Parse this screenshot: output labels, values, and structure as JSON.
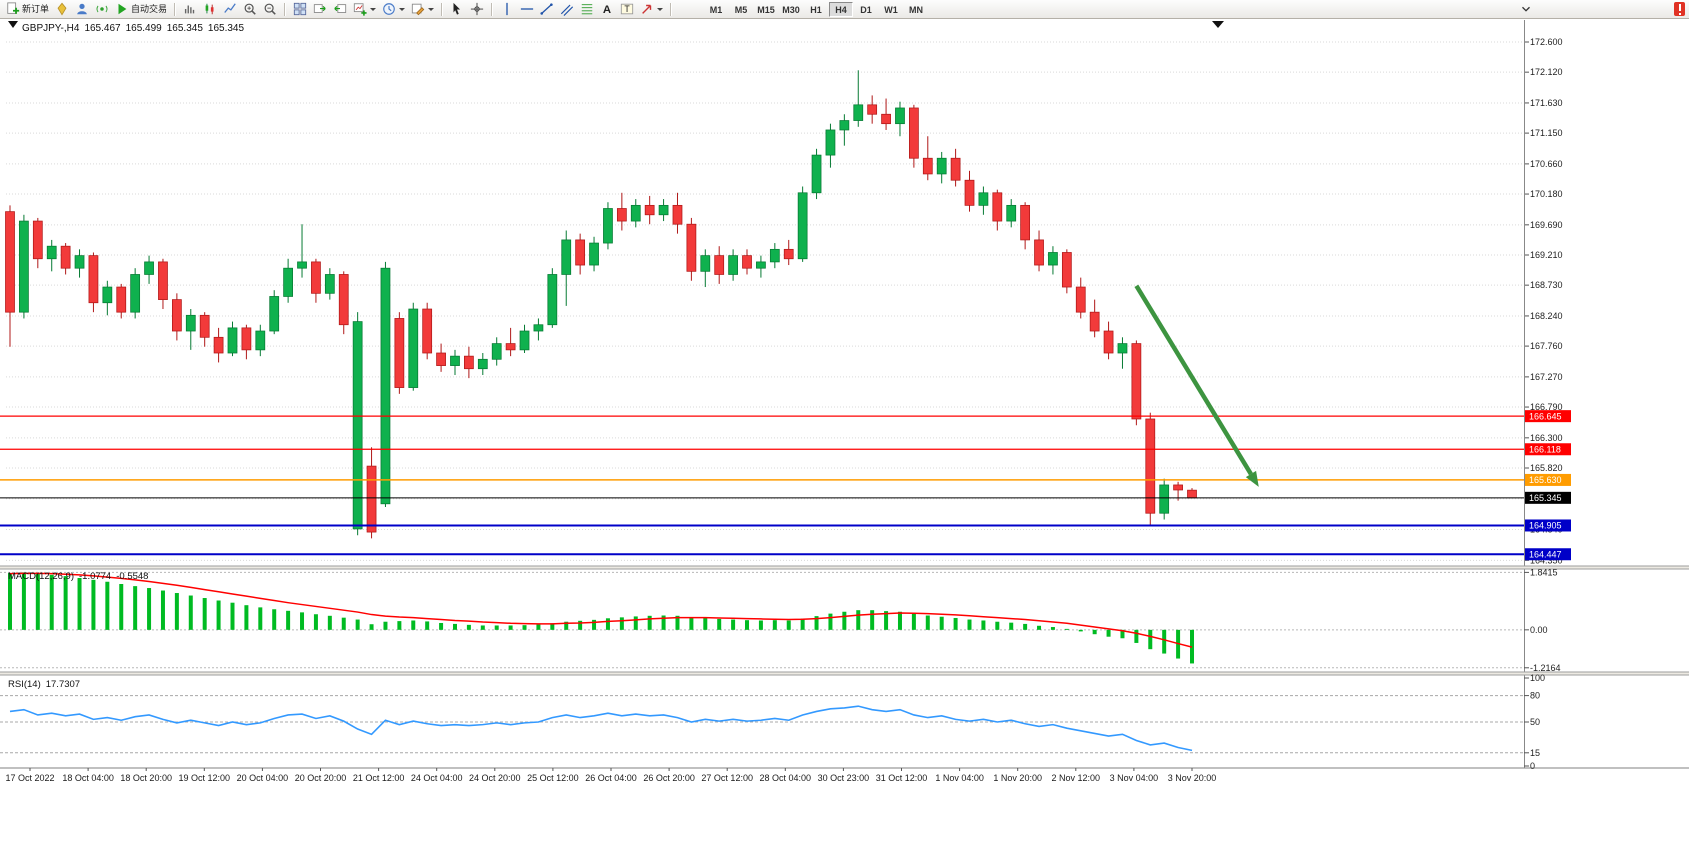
{
  "toolbar": {
    "items": [
      {
        "name": "new-order-button",
        "icon": "doc-plus",
        "label": "新订单"
      },
      {
        "name": "metaeditor-button",
        "icon": "bulb"
      },
      {
        "name": "profile-button",
        "icon": "person"
      },
      {
        "name": "signals-button",
        "icon": "broadcast"
      },
      {
        "name": "auto-trading-button",
        "icon": "play",
        "label": "自动交易"
      },
      {
        "sep": true
      },
      {
        "name": "bar-chart-button",
        "icon": "chart-bars"
      },
      {
        "name": "candlestick-chart-button",
        "icon": "chart-candles"
      },
      {
        "name": "line-chart-button",
        "icon": "chart-line"
      },
      {
        "name": "zoom-in-button",
        "icon": "zoom-in"
      },
      {
        "name": "zoom-out-button",
        "icon": "zoom-out"
      },
      {
        "sep": true
      },
      {
        "name": "tile-windows-button",
        "icon": "tile"
      },
      {
        "name": "auto-scroll-button",
        "icon": "scroll"
      },
      {
        "name": "chart-shift-button",
        "icon": "shift"
      },
      {
        "name": "new-chart-button",
        "icon": "new-chart",
        "caret": true
      },
      {
        "name": "periods-button",
        "icon": "clock",
        "caret": true
      },
      {
        "name": "templates-button",
        "icon": "pencil-chart",
        "caret": true
      },
      {
        "sep": true
      },
      {
        "name": "cursor-button",
        "icon": "cursor"
      },
      {
        "name": "crosshair-button",
        "icon": "crosshair"
      },
      {
        "sep": true
      },
      {
        "name": "vertical-line-button",
        "icon": "vline"
      },
      {
        "name": "horizontal-line-button",
        "icon": "hline"
      },
      {
        "name": "trendline-button",
        "icon": "trendline"
      },
      {
        "name": "channel-button",
        "icon": "channel"
      },
      {
        "name": "fibonacci-button",
        "icon": "fibo"
      },
      {
        "name": "text-button",
        "icon": "text-a"
      },
      {
        "name": "text-label-button",
        "icon": "text-t"
      },
      {
        "name": "arrows-button",
        "icon": "arrow-tool",
        "caret": true
      },
      {
        "sep": true
      }
    ],
    "timeframes": [
      "M1",
      "M5",
      "M15",
      "M30",
      "H1",
      "H4",
      "D1",
      "W1",
      "MN"
    ],
    "active_timeframe": "H4",
    "right_items": [
      {
        "name": "toolbar-overflow-button",
        "icon": "chevron"
      },
      {
        "name": "notification-badge",
        "icon": "badge"
      }
    ]
  },
  "chart_data": {
    "type": "candlestick",
    "symbol_title": "GBPJPY-,H4",
    "ohlc": {
      "open": "165.467",
      "high": "165.499",
      "low": "165.345",
      "close": "165.345"
    },
    "price_axis_ticks": [
      "172.600",
      "172.120",
      "171.630",
      "171.150",
      "170.660",
      "170.180",
      "169.690",
      "169.210",
      "168.730",
      "168.240",
      "167.760",
      "167.270",
      "166.790",
      "166.300",
      "165.820",
      "165.330",
      "164.840",
      "164.350"
    ],
    "time_labels": [
      "17 Oct 2022",
      "18 Oct 04:00",
      "18 Oct 20:00",
      "19 Oct 12:00",
      "20 Oct 04:00",
      "20 Oct 20:00",
      "21 Oct 12:00",
      "24 Oct 04:00",
      "24 Oct 20:00",
      "25 Oct 12:00",
      "26 Oct 04:00",
      "26 Oct 20:00",
      "27 Oct 12:00",
      "28 Oct 04:00",
      "30 Oct 23:00",
      "31 Oct 12:00",
      "1 Nov 04:00",
      "1 Nov 20:00",
      "2 Nov 12:00",
      "3 Nov 04:00",
      "3 Nov 20:00"
    ],
    "candles": [
      [
        169.9,
        170.0,
        167.75,
        168.3
      ],
      [
        168.3,
        169.85,
        168.2,
        169.75
      ],
      [
        169.75,
        169.8,
        169.0,
        169.15
      ],
      [
        169.15,
        169.45,
        168.95,
        169.35
      ],
      [
        169.35,
        169.4,
        168.9,
        169.0
      ],
      [
        169.0,
        169.3,
        168.85,
        169.2
      ],
      [
        169.2,
        169.25,
        168.3,
        168.45
      ],
      [
        168.45,
        168.8,
        168.25,
        168.7
      ],
      [
        168.7,
        168.75,
        168.2,
        168.3
      ],
      [
        168.3,
        169.0,
        168.2,
        168.9
      ],
      [
        168.9,
        169.2,
        168.75,
        169.1
      ],
      [
        169.1,
        169.15,
        168.35,
        168.5
      ],
      [
        168.5,
        168.6,
        167.85,
        168.0
      ],
      [
        168.0,
        168.35,
        167.7,
        168.25
      ],
      [
        168.25,
        168.3,
        167.75,
        167.9
      ],
      [
        167.9,
        168.05,
        167.5,
        167.65
      ],
      [
        167.65,
        168.15,
        167.6,
        168.05
      ],
      [
        168.05,
        168.1,
        167.55,
        167.7
      ],
      [
        167.7,
        168.1,
        167.6,
        168.0
      ],
      [
        168.0,
        168.65,
        167.95,
        168.55
      ],
      [
        168.55,
        169.15,
        168.45,
        169.0
      ],
      [
        169.0,
        169.7,
        168.85,
        169.1
      ],
      [
        169.1,
        169.15,
        168.45,
        168.6
      ],
      [
        168.6,
        169.0,
        168.5,
        168.9
      ],
      [
        168.9,
        168.95,
        167.95,
        168.1
      ],
      [
        164.85,
        168.3,
        164.75,
        168.15
      ],
      [
        165.85,
        166.15,
        164.7,
        164.8
      ],
      [
        165.25,
        169.1,
        165.2,
        169.0
      ],
      [
        168.2,
        168.3,
        167.0,
        167.1
      ],
      [
        167.1,
        168.45,
        167.05,
        168.35
      ],
      [
        168.35,
        168.45,
        167.55,
        167.65
      ],
      [
        167.65,
        167.8,
        167.35,
        167.45
      ],
      [
        167.45,
        167.7,
        167.3,
        167.6
      ],
      [
        167.6,
        167.75,
        167.25,
        167.4
      ],
      [
        167.4,
        167.65,
        167.3,
        167.55
      ],
      [
        167.55,
        167.9,
        167.45,
        167.8
      ],
      [
        167.8,
        168.05,
        167.6,
        167.7
      ],
      [
        167.7,
        168.1,
        167.65,
        168.0
      ],
      [
        168.0,
        168.2,
        167.85,
        168.1
      ],
      [
        168.1,
        169.0,
        168.05,
        168.9
      ],
      [
        168.9,
        169.6,
        168.4,
        169.45
      ],
      [
        169.45,
        169.55,
        168.9,
        169.05
      ],
      [
        169.05,
        169.5,
        168.95,
        169.4
      ],
      [
        169.4,
        170.05,
        169.3,
        169.95
      ],
      [
        169.95,
        170.2,
        169.6,
        169.75
      ],
      [
        169.75,
        170.1,
        169.65,
        170.0
      ],
      [
        170.0,
        170.15,
        169.7,
        169.85
      ],
      [
        169.85,
        170.1,
        169.75,
        170.0
      ],
      [
        170.0,
        170.2,
        169.55,
        169.7
      ],
      [
        169.7,
        169.8,
        168.8,
        168.95
      ],
      [
        168.95,
        169.3,
        168.7,
        169.2
      ],
      [
        169.2,
        169.35,
        168.75,
        168.9
      ],
      [
        168.9,
        169.3,
        168.8,
        169.2
      ],
      [
        169.2,
        169.3,
        168.9,
        169.0
      ],
      [
        169.0,
        169.2,
        168.85,
        169.1
      ],
      [
        169.1,
        169.4,
        169.0,
        169.3
      ],
      [
        169.3,
        169.45,
        169.05,
        169.15
      ],
      [
        169.15,
        170.3,
        169.1,
        170.2
      ],
      [
        170.2,
        170.9,
        170.1,
        170.8
      ],
      [
        170.8,
        171.3,
        170.6,
        171.2
      ],
      [
        171.2,
        171.45,
        170.95,
        171.35
      ],
      [
        171.35,
        172.15,
        171.25,
        171.6
      ],
      [
        171.6,
        171.75,
        171.3,
        171.45
      ],
      [
        171.45,
        171.7,
        171.2,
        171.3
      ],
      [
        171.3,
        171.65,
        171.1,
        171.55
      ],
      [
        171.55,
        171.6,
        170.6,
        170.75
      ],
      [
        170.75,
        171.1,
        170.4,
        170.5
      ],
      [
        170.5,
        170.85,
        170.35,
        170.75
      ],
      [
        170.75,
        170.9,
        170.3,
        170.4
      ],
      [
        170.4,
        170.55,
        169.9,
        170.0
      ],
      [
        170.0,
        170.3,
        169.85,
        170.2
      ],
      [
        170.2,
        170.25,
        169.6,
        169.75
      ],
      [
        169.75,
        170.1,
        169.65,
        170.0
      ],
      [
        170.0,
        170.05,
        169.3,
        169.45
      ],
      [
        169.45,
        169.6,
        168.95,
        169.05
      ],
      [
        169.05,
        169.35,
        168.9,
        169.25
      ],
      [
        169.25,
        169.3,
        168.6,
        168.7
      ],
      [
        168.7,
        168.85,
        168.2,
        168.3
      ],
      [
        168.3,
        168.5,
        167.9,
        168.0
      ],
      [
        168.0,
        168.15,
        167.55,
        167.65
      ],
      [
        167.65,
        167.9,
        167.4,
        167.8
      ],
      [
        167.8,
        167.85,
        166.5,
        166.6
      ],
      [
        166.6,
        166.7,
        164.9,
        165.1
      ],
      [
        165.1,
        165.65,
        165.0,
        165.55
      ],
      [
        165.55,
        165.6,
        165.3,
        165.47
      ],
      [
        165.467,
        165.499,
        165.345,
        165.345
      ]
    ],
    "levels": [
      {
        "label": "166.645",
        "price": 166.645,
        "color": "#ff0000",
        "width": 1.2
      },
      {
        "label": "166.118",
        "price": 166.118,
        "color": "#ff0000",
        "width": 1.2
      },
      {
        "label": "165.630",
        "price": 165.63,
        "color": "#ff9c00",
        "width": 1.5
      },
      {
        "label": "165.345",
        "price": 165.345,
        "color": "#000000",
        "width": 1
      },
      {
        "label": "164.905",
        "price": 164.905,
        "color": "#0000c8",
        "width": 2
      },
      {
        "label": "164.447",
        "price": 164.447,
        "color": "#0000c8",
        "width": 2
      }
    ],
    "arrow": {
      "from_index": 81,
      "from_price": 168.72,
      "to_index": 89.8,
      "to_price": 165.52,
      "color": "#3d9440"
    },
    "colors": {
      "up": "#0fb14e",
      "up_border": "#067a33",
      "down": "#f23a3a",
      "down_border": "#b01818",
      "grid": "#d9d9d9",
      "axis_text": "#222222"
    },
    "macd": {
      "name": "MACD(12,26,9)",
      "main_value": "-1.0774",
      "signal_value": "-0.5548",
      "axis_labels": [
        "1.8415",
        "0.00",
        "-1.2164"
      ],
      "range_max": 1.95,
      "range_min": -1.35,
      "hist_color": "#00bb22",
      "signal_color": "#ff0000",
      "histogram": [
        1.82,
        1.84,
        1.8,
        1.76,
        1.72,
        1.66,
        1.6,
        1.54,
        1.47,
        1.4,
        1.34,
        1.26,
        1.18,
        1.1,
        1.02,
        0.94,
        0.87,
        0.79,
        0.72,
        0.66,
        0.61,
        0.56,
        0.5,
        0.45,
        0.39,
        0.33,
        0.18,
        0.26,
        0.28,
        0.3,
        0.27,
        0.22,
        0.19,
        0.16,
        0.14,
        0.14,
        0.14,
        0.15,
        0.17,
        0.21,
        0.26,
        0.29,
        0.32,
        0.37,
        0.4,
        0.43,
        0.45,
        0.46,
        0.45,
        0.41,
        0.38,
        0.35,
        0.33,
        0.31,
        0.3,
        0.31,
        0.3,
        0.36,
        0.44,
        0.52,
        0.58,
        0.63,
        0.63,
        0.6,
        0.58,
        0.52,
        0.46,
        0.42,
        0.38,
        0.33,
        0.3,
        0.26,
        0.23,
        0.19,
        0.13,
        0.09,
        0.03,
        -0.05,
        -0.14,
        -0.22,
        -0.27,
        -0.42,
        -0.62,
        -0.76,
        -0.92,
        -1.0774
      ],
      "signal": [
        1.8,
        1.81,
        1.81,
        1.8,
        1.78,
        1.76,
        1.73,
        1.69,
        1.65,
        1.6,
        1.55,
        1.49,
        1.43,
        1.36,
        1.29,
        1.22,
        1.15,
        1.08,
        1.01,
        0.94,
        0.87,
        0.81,
        0.75,
        0.69,
        0.63,
        0.57,
        0.49,
        0.44,
        0.41,
        0.39,
        0.36,
        0.33,
        0.3,
        0.28,
        0.25,
        0.23,
        0.21,
        0.2,
        0.19,
        0.19,
        0.21,
        0.22,
        0.24,
        0.27,
        0.29,
        0.32,
        0.35,
        0.37,
        0.39,
        0.39,
        0.39,
        0.38,
        0.37,
        0.36,
        0.35,
        0.34,
        0.33,
        0.34,
        0.36,
        0.39,
        0.43,
        0.47,
        0.5,
        0.52,
        0.54,
        0.53,
        0.52,
        0.5,
        0.48,
        0.45,
        0.42,
        0.39,
        0.36,
        0.33,
        0.29,
        0.25,
        0.21,
        0.15,
        0.09,
        0.03,
        -0.03,
        -0.11,
        -0.21,
        -0.32,
        -0.44,
        -0.5548
      ]
    },
    "rsi": {
      "name": "RSI(14)",
      "value": "17.7307",
      "axis_labels": [
        "100",
        "80",
        "50",
        "15",
        "0"
      ],
      "dashed_levels": [
        80,
        50,
        15
      ],
      "line_color": "#3399ff",
      "values": [
        62,
        64,
        58,
        60,
        57,
        59,
        53,
        55,
        52,
        56,
        58,
        53,
        49,
        52,
        49,
        46,
        50,
        47,
        49,
        54,
        58,
        59,
        54,
        57,
        51,
        42,
        36,
        52,
        47,
        51,
        48,
        46,
        47,
        46,
        47,
        49,
        47,
        49,
        50,
        55,
        58,
        55,
        57,
        60,
        57,
        59,
        57,
        58,
        55,
        50,
        53,
        51,
        53,
        51,
        52,
        54,
        52,
        58,
        62,
        65,
        66,
        68,
        64,
        62,
        64,
        58,
        55,
        57,
        53,
        51,
        53,
        50,
        52,
        48,
        45,
        47,
        43,
        40,
        37,
        34,
        36,
        29,
        24,
        26,
        21,
        17.73
      ]
    }
  }
}
